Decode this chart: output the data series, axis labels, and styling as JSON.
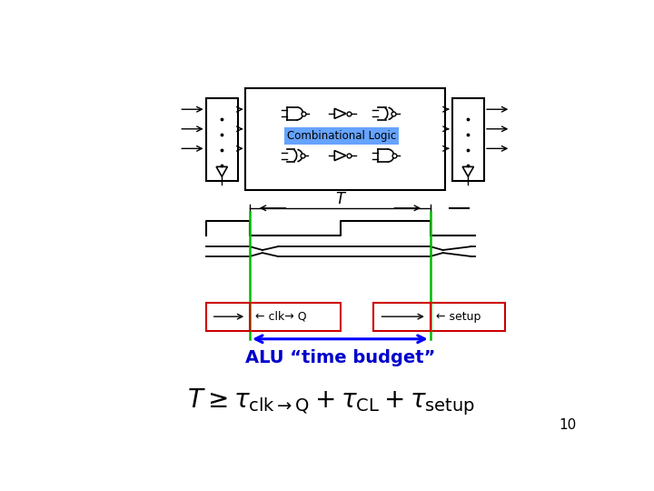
{
  "bg_color": "#ffffff",
  "green_line_color": "#00bb00",
  "blue_arrow_color": "#0000ff",
  "red_box_color": "#cc0000",
  "blue_text_color": "#0000cc",
  "slide_num": "10",
  "comb_label": "Combinational Logic",
  "alu_label": "ALU “time budget”",
  "clkq_label": "← clk→ Q",
  "setup_label": "← setup",
  "T_label": "T"
}
